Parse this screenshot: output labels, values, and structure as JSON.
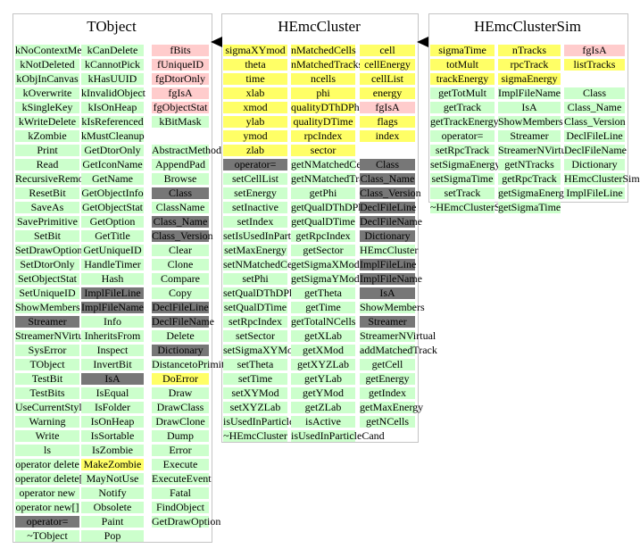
{
  "classes": [
    {
      "title": "TObject",
      "columns": [
        [
          [
            "kNoContextMenu",
            "g"
          ],
          [
            "kNotDeleted",
            "g"
          ],
          [
            "kObjInCanvas",
            "g"
          ],
          [
            "kOverwrite",
            "g"
          ],
          [
            "kSingleKey",
            "g"
          ],
          [
            "kWriteDelete",
            "g"
          ],
          [
            "kZombie",
            "g"
          ],
          [
            "Print",
            "g"
          ],
          [
            "Read",
            "g"
          ],
          [
            "RecursiveRemove",
            "g"
          ],
          [
            "ResetBit",
            "g"
          ],
          [
            "SaveAs",
            "g"
          ],
          [
            "SavePrimitive",
            "g"
          ],
          [
            "SetBit",
            "g"
          ],
          [
            "SetDrawOption",
            "g"
          ],
          [
            "SetDtorOnly",
            "g"
          ],
          [
            "SetObjectStat",
            "g"
          ],
          [
            "SetUniqueID",
            "g"
          ],
          [
            "ShowMembers",
            "g"
          ],
          [
            "Streamer",
            "d"
          ],
          [
            "StreamerNVirtual",
            "g"
          ],
          [
            "SysError",
            "g"
          ],
          [
            "TObject",
            "g"
          ],
          [
            "TestBit",
            "g"
          ],
          [
            "TestBits",
            "g"
          ],
          [
            "UseCurrentStyle",
            "g"
          ],
          [
            "Warning",
            "g"
          ],
          [
            "Write",
            "g"
          ],
          [
            "ls",
            "g"
          ],
          [
            "operator delete",
            "g"
          ],
          [
            "operator delete[]",
            "g"
          ],
          [
            "operator new",
            "g"
          ],
          [
            "operator new[]",
            "g"
          ],
          [
            "operator=",
            "d"
          ],
          [
            "~TObject",
            "g"
          ]
        ],
        [
          [
            "kCanDelete",
            "g"
          ],
          [
            "kCannotPick",
            "g"
          ],
          [
            "kHasUUID",
            "g"
          ],
          [
            "kInvalidObject",
            "g"
          ],
          [
            "kIsOnHeap",
            "g"
          ],
          [
            "kIsReferenced",
            "g"
          ],
          [
            "kMustCleanup",
            "g"
          ],
          [
            "GetDtorOnly",
            "g"
          ],
          [
            "GetIconName",
            "g"
          ],
          [
            "GetName",
            "g"
          ],
          [
            "GetObjectInfo",
            "g"
          ],
          [
            "GetObjectStat",
            "g"
          ],
          [
            "GetOption",
            "g"
          ],
          [
            "GetTitle",
            "g"
          ],
          [
            "GetUniqueID",
            "g"
          ],
          [
            "HandleTimer",
            "g"
          ],
          [
            "Hash",
            "g"
          ],
          [
            "ImplFileLine",
            "d"
          ],
          [
            "ImplFileName",
            "d"
          ],
          [
            "Info",
            "g"
          ],
          [
            "InheritsFrom",
            "g"
          ],
          [
            "Inspect",
            "g"
          ],
          [
            "InvertBit",
            "g"
          ],
          [
            "IsA",
            "d"
          ],
          [
            "IsEqual",
            "g"
          ],
          [
            "IsFolder",
            "g"
          ],
          [
            "IsOnHeap",
            "g"
          ],
          [
            "IsSortable",
            "g"
          ],
          [
            "IsZombie",
            "g"
          ],
          [
            "MakeZombie",
            "y"
          ],
          [
            "MayNotUse",
            "g"
          ],
          [
            "Notify",
            "g"
          ],
          [
            "Obsolete",
            "g"
          ],
          [
            "Paint",
            "g"
          ],
          [
            "Pop",
            "g"
          ]
        ],
        [
          [
            "fBits",
            "p"
          ],
          [
            "fUniqueID",
            "p"
          ],
          [
            "fgDtorOnly",
            "p"
          ],
          [
            "fgIsA",
            "p"
          ],
          [
            "fgObjectStat",
            "p"
          ],
          [
            "kBitMask",
            "g"
          ],
          [
            "",
            "w"
          ],
          [
            "AbstractMethod",
            "g"
          ],
          [
            "AppendPad",
            "g"
          ],
          [
            "Browse",
            "g"
          ],
          [
            "Class",
            "d"
          ],
          [
            "ClassName",
            "g"
          ],
          [
            "Class_Name",
            "d"
          ],
          [
            "Class_Version",
            "d"
          ],
          [
            "Clear",
            "g"
          ],
          [
            "Clone",
            "g"
          ],
          [
            "Compare",
            "g"
          ],
          [
            "Copy",
            "g"
          ],
          [
            "DeclFileLine",
            "d"
          ],
          [
            "DeclFileName",
            "d"
          ],
          [
            "Delete",
            "g"
          ],
          [
            "Dictionary",
            "d"
          ],
          [
            "DistancetoPrimitive",
            "g"
          ],
          [
            "DoError",
            "y"
          ],
          [
            "Draw",
            "g"
          ],
          [
            "DrawClass",
            "g"
          ],
          [
            "DrawClone",
            "g"
          ],
          [
            "Dump",
            "g"
          ],
          [
            "Error",
            "g"
          ],
          [
            "Execute",
            "g"
          ],
          [
            "ExecuteEvent",
            "g"
          ],
          [
            "Fatal",
            "g"
          ],
          [
            "FindObject",
            "g"
          ],
          [
            "GetDrawOption",
            "g"
          ]
        ]
      ]
    },
    {
      "title": "HEmcCluster",
      "columns": [
        [
          [
            "sigmaXYmod",
            "y"
          ],
          [
            "theta",
            "y"
          ],
          [
            "time",
            "y"
          ],
          [
            "xlab",
            "y"
          ],
          [
            "xmod",
            "y"
          ],
          [
            "ylab",
            "y"
          ],
          [
            "ymod",
            "y"
          ],
          [
            "zlab",
            "y"
          ],
          [
            "operator=",
            "d"
          ],
          [
            "setCellList",
            "g"
          ],
          [
            "setEnergy",
            "g"
          ],
          [
            "setInactive",
            "g"
          ],
          [
            "setIndex",
            "g"
          ],
          [
            "setIsUsedInParticleCand",
            "g"
          ],
          [
            "setMaxEnergy",
            "g"
          ],
          [
            "setNMatchedCells",
            "g"
          ],
          [
            "setPhi",
            "g"
          ],
          [
            "setQualDThDPh",
            "g"
          ],
          [
            "setQualDTime",
            "g"
          ],
          [
            "setRpcIndex",
            "g"
          ],
          [
            "setSector",
            "g"
          ],
          [
            "setSigmaXYMod",
            "g"
          ],
          [
            "setTheta",
            "g"
          ],
          [
            "setTime",
            "g"
          ],
          [
            "setXYMod",
            "g"
          ],
          [
            "setXYZLab",
            "g"
          ],
          [
            "isUsedInParticleCand",
            "g"
          ],
          [
            "~HEmcCluster",
            "g"
          ]
        ],
        [
          [
            "nMatchedCells",
            "y"
          ],
          [
            "nMatchedTracks",
            "y"
          ],
          [
            "ncells",
            "y"
          ],
          [
            "phi",
            "y"
          ],
          [
            "qualityDThDPh",
            "y"
          ],
          [
            "qualityDTime",
            "y"
          ],
          [
            "rpcIndex",
            "y"
          ],
          [
            "sector",
            "y"
          ],
          [
            "getNMatchedCells",
            "g"
          ],
          [
            "getNMatchedTracks",
            "g"
          ],
          [
            "getPhi",
            "g"
          ],
          [
            "getQualDThDPh",
            "g"
          ],
          [
            "getQualDTime",
            "g"
          ],
          [
            "getRpcIndex",
            "g"
          ],
          [
            "getSector",
            "g"
          ],
          [
            "getSigmaXMod",
            "g"
          ],
          [
            "getSigmaYMod",
            "g"
          ],
          [
            "getTheta",
            "g"
          ],
          [
            "getTime",
            "g"
          ],
          [
            "getTotalNCells",
            "g"
          ],
          [
            "getXLab",
            "g"
          ],
          [
            "getXMod",
            "g"
          ],
          [
            "getXYZLab",
            "g"
          ],
          [
            "getYLab",
            "g"
          ],
          [
            "getYMod",
            "g"
          ],
          [
            "getZLab",
            "g"
          ],
          [
            "isActive",
            "g"
          ],
          [
            "isUsedInParticleCand",
            "g"
          ]
        ],
        [
          [
            "cell",
            "y"
          ],
          [
            "cellEnergy",
            "y"
          ],
          [
            "cellList",
            "y"
          ],
          [
            "energy",
            "y"
          ],
          [
            "fgIsA",
            "p"
          ],
          [
            "flags",
            "y"
          ],
          [
            "index",
            "y"
          ],
          [
            "",
            "w"
          ],
          [
            "Class",
            "d"
          ],
          [
            "Class_Name",
            "d"
          ],
          [
            "Class_Version",
            "d"
          ],
          [
            "DeclFileLine",
            "d"
          ],
          [
            "DeclFileName",
            "d"
          ],
          [
            "Dictionary",
            "d"
          ],
          [
            "HEmcCluster",
            "g"
          ],
          [
            "ImplFileLine",
            "d"
          ],
          [
            "ImplFileName",
            "d"
          ],
          [
            "IsA",
            "d"
          ],
          [
            "ShowMembers",
            "g"
          ],
          [
            "Streamer",
            "d"
          ],
          [
            "StreamerNVirtual",
            "g"
          ],
          [
            "addMatchedTrack",
            "g"
          ],
          [
            "getCell",
            "g"
          ],
          [
            "getEnergy",
            "g"
          ],
          [
            "getIndex",
            "g"
          ],
          [
            "getMaxEnergy",
            "g"
          ],
          [
            "getNCells",
            "g"
          ]
        ]
      ]
    },
    {
      "title": "HEmcClusterSim",
      "columns": [
        [
          [
            "sigmaTime",
            "y"
          ],
          [
            "totMult",
            "y"
          ],
          [
            "trackEnergy",
            "y"
          ],
          [
            "getTotMult",
            "g"
          ],
          [
            "getTrack",
            "g"
          ],
          [
            "getTrackEnergy",
            "g"
          ],
          [
            "operator=",
            "g"
          ],
          [
            "setRpcTrack",
            "g"
          ],
          [
            "setSigmaEnergy",
            "g"
          ],
          [
            "setSigmaTime",
            "g"
          ],
          [
            "setTrack",
            "g"
          ],
          [
            "~HEmcClusterSim",
            "g"
          ]
        ],
        [
          [
            "nTracks",
            "y"
          ],
          [
            "rpcTrack",
            "y"
          ],
          [
            "sigmaEnergy",
            "y"
          ],
          [
            "ImplFileName",
            "g"
          ],
          [
            "IsA",
            "g"
          ],
          [
            "ShowMembers",
            "g"
          ],
          [
            "Streamer",
            "g"
          ],
          [
            "StreamerNVirtual",
            "g"
          ],
          [
            "getNTracks",
            "g"
          ],
          [
            "getRpcTrack",
            "g"
          ],
          [
            "getSigmaEnergy",
            "g"
          ],
          [
            "getSigmaTime",
            "g"
          ]
        ],
        [
          [
            "fgIsA",
            "p"
          ],
          [
            "listTracks",
            "y"
          ],
          [
            "",
            "w"
          ],
          [
            "Class",
            "g"
          ],
          [
            "Class_Name",
            "g"
          ],
          [
            "Class_Version",
            "g"
          ],
          [
            "DeclFileLine",
            "g"
          ],
          [
            "DeclFileName",
            "g"
          ],
          [
            "Dictionary",
            "g"
          ],
          [
            "HEmcClusterSim",
            "g"
          ],
          [
            "ImplFileLine",
            "g"
          ]
        ]
      ]
    }
  ],
  "colors": {
    "green": "#ccffcc",
    "yellow": "#ffff66",
    "pink": "#ffcccc",
    "gray": "#777777",
    "border": "#c4c4c4"
  },
  "inheritance_arrows": [
    "HEmcCluster → TObject",
    "HEmcClusterSim → HEmcCluster"
  ]
}
